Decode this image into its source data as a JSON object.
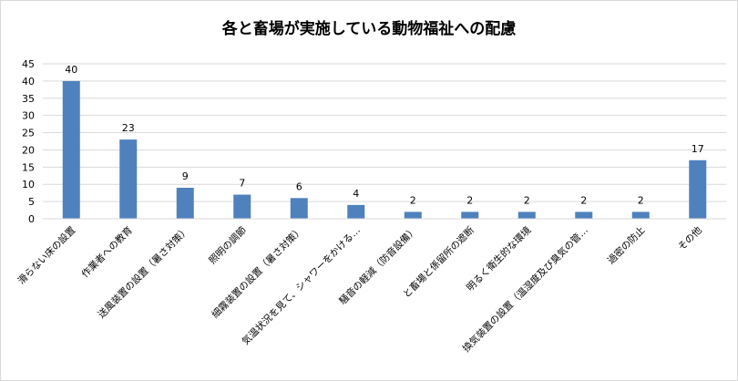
{
  "chart_data": {
    "type": "bar",
    "title": "各と畜場が実施している動物福祉への配慮",
    "xlabel": "",
    "ylabel": "",
    "ylim": [
      0,
      45
    ],
    "yticks": [
      0,
      5,
      10,
      15,
      20,
      25,
      30,
      35,
      40,
      45
    ],
    "grid": true,
    "legend": "none",
    "bar_color": "#4f81bd",
    "grid_color": "#d9d9d9",
    "categories": [
      "滑らない床の設置",
      "作業者への教育",
      "送風装置の設置（暑さ対策）",
      "照明の調節",
      "細霧装置の設置（暑さ対策）",
      "気温状況を見て、シャワーをかける…",
      "騒音の軽減（防音設備）",
      "と畜場と係留所の遮断",
      "明るく衛生的な環境",
      "換気装置の設置（温湿度及び臭気の管…",
      "過密の防止",
      "その他"
    ],
    "values": [
      40,
      23,
      9,
      7,
      6,
      4,
      2,
      2,
      2,
      2,
      2,
      17
    ]
  }
}
